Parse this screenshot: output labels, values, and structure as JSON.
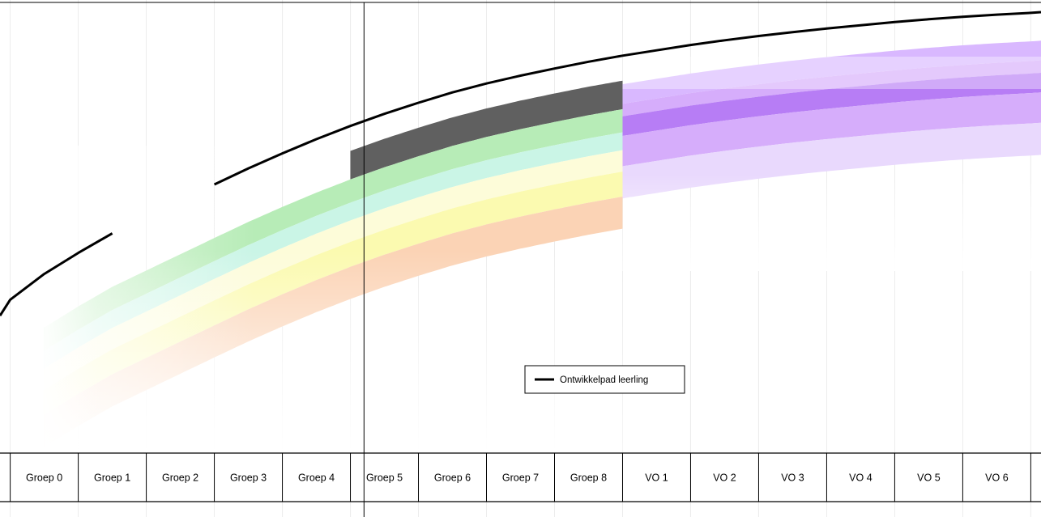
{
  "chart_data": {
    "type": "line",
    "categories": [
      "Groep 0",
      "Groep 1",
      "Groep 2",
      "Groep 3",
      "Groep 4",
      "Groep 5",
      "Groep 6",
      "Groep 7",
      "Groep 8",
      "VO 1",
      "VO 2",
      "VO 3",
      "VO 4",
      "VO 5",
      "VO 6"
    ],
    "series": [
      {
        "name": "Ontwikkelpad leerling",
        "color": "#000000",
        "x": [
          -0.65,
          -0.5,
          0.0,
          0.5,
          1.0,
          1.5,
          2.0,
          2.5,
          3.0,
          3.5,
          4.0,
          4.5,
          5.0,
          5.5,
          6.0,
          6.5,
          7.0,
          7.5,
          8.0,
          8.5,
          9.0,
          9.5,
          10.0,
          10.5,
          11.0,
          11.5,
          12.0,
          12.5,
          13.0,
          13.5,
          14.0,
          14.5,
          14.65
        ],
        "y": [
          0.335,
          0.38,
          0.452,
          0.511,
          0.566,
          null,
          null,
          0.703,
          0.748,
          0.79,
          0.83,
          0.867,
          0.901,
          0.932,
          0.961,
          0.986,
          1.008,
          1.028,
          1.047,
          1.064,
          1.079,
          1.094,
          1.107,
          1.119,
          1.13,
          1.14,
          1.149,
          1.158,
          1.166,
          1.173,
          1.179,
          1.184,
          1.186
        ]
      }
    ],
    "bands": {
      "primary": {
        "x_start": 0.0,
        "x_end": 8.5,
        "levels": [
          {
            "offset_from_student": -0.07,
            "color": "#606060",
            "x_start": 4.5
          },
          {
            "offset_from_student": -0.15,
            "color": "#b7ecb7"
          },
          {
            "offset_from_student": -0.215,
            "color": "#caf5e6"
          },
          {
            "offset_from_student": -0.265,
            "color": "#fdfcd9"
          },
          {
            "offset_from_student": -0.325,
            "color": "#fbfab0"
          },
          {
            "offset_from_student": -0.395,
            "color": "#fbd3b5"
          }
        ]
      },
      "secondary": {
        "x_start": 8.5,
        "x_end": 14.65,
        "levels": [
          {
            "offset_from_student": -0.08,
            "color": "#d9b8ff"
          },
          {
            "offset_from_student": -0.135,
            "color": "#d6adfb"
          },
          {
            "offset_from_student": -0.17,
            "color": "#b77df5"
          },
          {
            "offset_from_student": -0.225,
            "color": "#d6adfb"
          },
          {
            "offset_from_student": -0.31,
            "color": "#e9d9fd"
          }
        ]
      }
    },
    "marker_x": 4.7,
    "xlim": [
      -0.65,
      14.65
    ],
    "ylim": [
      -0.05,
      1.22
    ],
    "grid": true,
    "legend": {
      "position": "center-right",
      "entries": [
        "Ontwikkelpad leerling"
      ]
    },
    "title": "",
    "xlabel": "",
    "ylabel": ""
  }
}
